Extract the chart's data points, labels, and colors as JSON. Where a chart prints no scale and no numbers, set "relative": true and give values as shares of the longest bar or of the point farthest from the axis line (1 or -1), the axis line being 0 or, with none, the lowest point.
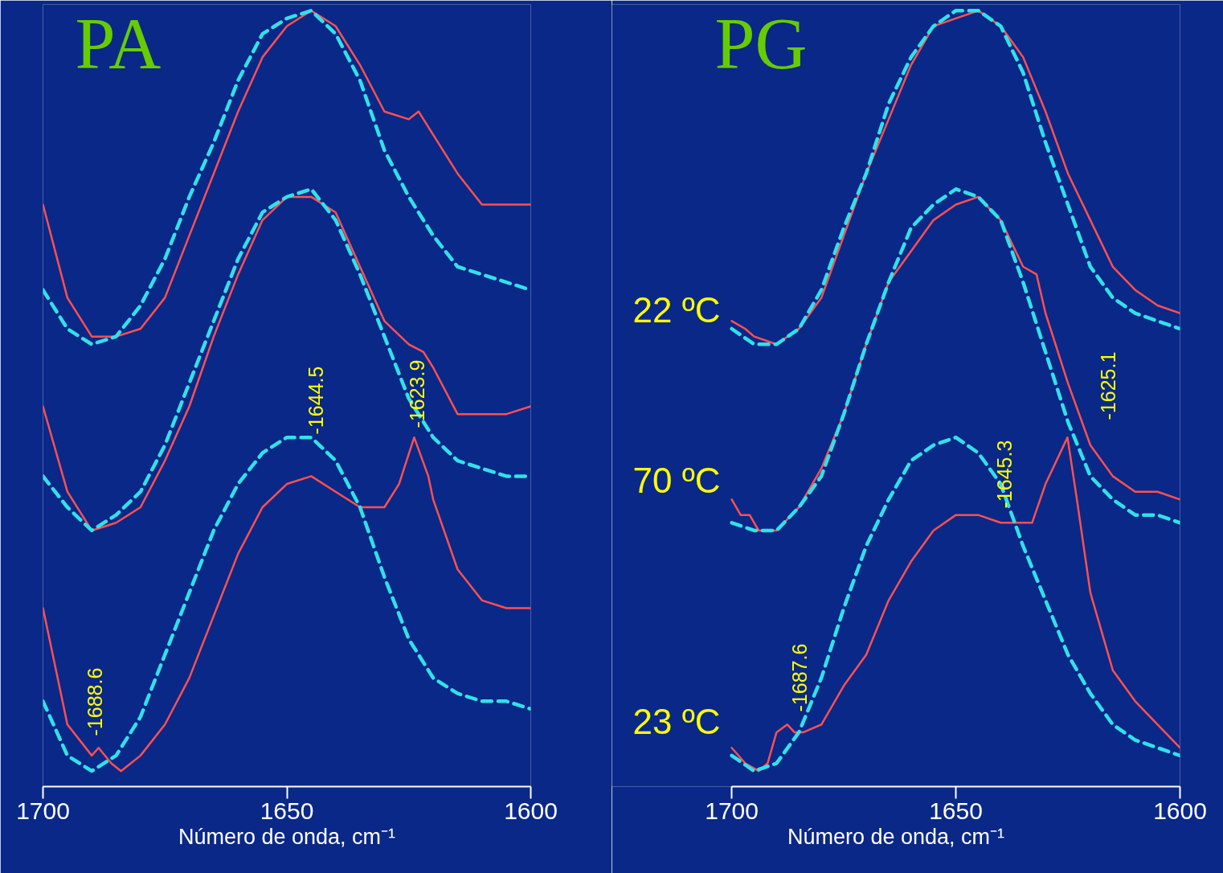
{
  "chart_data": [
    {
      "type": "line",
      "title": "PA",
      "xlabel": "Número de onda, cm⁻¹",
      "relative": true,
      "xlim": [
        1700,
        1600
      ],
      "xticks": [
        1700,
        1650,
        1600
      ],
      "grid": false,
      "series": [
        {
          "color": "#ff5050",
          "line_style": "solid",
          "x": [
            1700,
            1695,
            1690,
            1685,
            1680,
            1675,
            1670,
            1665,
            1660,
            1655,
            1650,
            1645,
            1640,
            1635,
            1630,
            1625,
            1623,
            1620,
            1615,
            1610,
            1605,
            1600
          ],
          "values": [
            0.75,
            0.63,
            0.58,
            0.58,
            0.59,
            0.63,
            0.71,
            0.79,
            0.87,
            0.94,
            0.98,
            1.0,
            0.98,
            0.93,
            0.87,
            0.86,
            0.87,
            0.84,
            0.79,
            0.75,
            0.75,
            0.75
          ]
        },
        {
          "color": "#33e0e8",
          "line_style": "dashed",
          "x": [
            1700,
            1695,
            1690,
            1685,
            1680,
            1675,
            1670,
            1665,
            1660,
            1655,
            1650,
            1645,
            1640,
            1635,
            1630,
            1625,
            1620,
            1615,
            1610,
            1605,
            1600
          ],
          "values": [
            0.64,
            0.59,
            0.57,
            0.58,
            0.62,
            0.68,
            0.76,
            0.83,
            0.91,
            0.97,
            0.99,
            1.0,
            0.97,
            0.91,
            0.82,
            0.76,
            0.71,
            0.67,
            0.66,
            0.65,
            0.64
          ]
        },
        {
          "color": "#ff5050",
          "line_style": "solid",
          "x": [
            1700,
            1695,
            1690,
            1685,
            1680,
            1675,
            1670,
            1665,
            1660,
            1655,
            1650,
            1645,
            1640,
            1635,
            1630,
            1625,
            1622,
            1620,
            1615,
            1610,
            1605,
            1600
          ],
          "values": [
            0.49,
            0.38,
            0.33,
            0.34,
            0.36,
            0.42,
            0.49,
            0.58,
            0.66,
            0.73,
            0.76,
            0.76,
            0.74,
            0.67,
            0.6,
            0.57,
            0.56,
            0.54,
            0.48,
            0.48,
            0.48,
            0.49
          ]
        },
        {
          "color": "#33e0e8",
          "line_style": "dashed",
          "x": [
            1700,
            1695,
            1690,
            1685,
            1680,
            1675,
            1670,
            1665,
            1660,
            1655,
            1650,
            1645,
            1640,
            1635,
            1630,
            1625,
            1620,
            1615,
            1610,
            1605,
            1600
          ],
          "values": [
            0.4,
            0.36,
            0.33,
            0.35,
            0.38,
            0.44,
            0.52,
            0.6,
            0.68,
            0.74,
            0.76,
            0.77,
            0.73,
            0.66,
            0.58,
            0.5,
            0.45,
            0.42,
            0.41,
            0.4,
            0.4
          ]
        },
        {
          "color": "#ff5050",
          "line_style": "solid",
          "x": [
            1700,
            1695,
            1690,
            1688.6,
            1686,
            1684,
            1680,
            1675,
            1670,
            1665,
            1660,
            1655,
            1650,
            1645,
            1640,
            1635,
            1630,
            1627,
            1623.9,
            1621,
            1620,
            1615,
            1610,
            1605,
            1600
          ],
          "values": [
            0.23,
            0.08,
            0.04,
            0.05,
            0.03,
            0.02,
            0.04,
            0.08,
            0.14,
            0.22,
            0.3,
            0.36,
            0.39,
            0.4,
            0.38,
            0.36,
            0.36,
            0.39,
            0.45,
            0.4,
            0.37,
            0.28,
            0.24,
            0.23,
            0.23
          ]
        },
        {
          "color": "#33e0e8",
          "line_style": "dashed",
          "x": [
            1700,
            1695,
            1690,
            1685,
            1680,
            1675,
            1670,
            1665,
            1660,
            1655,
            1650,
            1645,
            1640,
            1635,
            1630,
            1625,
            1620,
            1615,
            1610,
            1605,
            1600
          ],
          "values": [
            0.11,
            0.04,
            0.02,
            0.04,
            0.09,
            0.17,
            0.25,
            0.33,
            0.39,
            0.43,
            0.45,
            0.45,
            0.42,
            0.36,
            0.27,
            0.19,
            0.14,
            0.12,
            0.11,
            0.11,
            0.1
          ]
        }
      ],
      "annotations": [
        "-1688.6",
        "-1644.5",
        "-1623.9"
      ]
    },
    {
      "type": "line",
      "title": "PG",
      "xlabel": "Número de onda, cm⁻¹",
      "relative": true,
      "xlim": [
        1700,
        1600
      ],
      "xticks": [
        1700,
        1650,
        1600
      ],
      "grid": false,
      "series": [
        {
          "color": "#ff5050",
          "line_style": "solid",
          "x": [
            1700,
            1697,
            1695,
            1690,
            1685,
            1680,
            1675,
            1670,
            1665,
            1660,
            1655,
            1650,
            1645,
            1640,
            1635,
            1630,
            1625,
            1620,
            1615,
            1610,
            1605,
            1600
          ],
          "values": [
            0.6,
            0.59,
            0.58,
            0.57,
            0.59,
            0.63,
            0.71,
            0.79,
            0.86,
            0.93,
            0.98,
            0.99,
            1.0,
            0.98,
            0.94,
            0.87,
            0.79,
            0.73,
            0.67,
            0.64,
            0.62,
            0.61
          ]
        },
        {
          "color": "#33e0e8",
          "line_style": "dashed",
          "x": [
            1700,
            1695,
            1690,
            1685,
            1680,
            1675,
            1670,
            1665,
            1660,
            1655,
            1650,
            1645,
            1640,
            1635,
            1630,
            1625,
            1620,
            1615,
            1610,
            1605,
            1600
          ],
          "values": [
            0.59,
            0.57,
            0.57,
            0.59,
            0.64,
            0.72,
            0.79,
            0.88,
            0.94,
            0.98,
            1.0,
            1.0,
            0.98,
            0.92,
            0.83,
            0.75,
            0.67,
            0.63,
            0.61,
            0.6,
            0.59
          ]
        },
        {
          "color": "#ff5050",
          "line_style": "solid",
          "x": [
            1700,
            1698,
            1696,
            1694,
            1690,
            1685,
            1680,
            1675,
            1670,
            1665,
            1660,
            1655,
            1650,
            1645,
            1640,
            1635,
            1632,
            1630,
            1625,
            1620,
            1615,
            1610,
            1605,
            1600
          ],
          "values": [
            0.37,
            0.35,
            0.35,
            0.33,
            0.33,
            0.36,
            0.41,
            0.48,
            0.57,
            0.65,
            0.69,
            0.73,
            0.75,
            0.76,
            0.73,
            0.67,
            0.66,
            0.61,
            0.52,
            0.44,
            0.4,
            0.38,
            0.38,
            0.37
          ]
        },
        {
          "color": "#33e0e8",
          "line_style": "dashed",
          "x": [
            1700,
            1695,
            1690,
            1685,
            1680,
            1675,
            1670,
            1665,
            1660,
            1655,
            1650,
            1645,
            1640,
            1635,
            1630,
            1625,
            1620,
            1615,
            1610,
            1605,
            1600
          ],
          "values": [
            0.34,
            0.33,
            0.33,
            0.36,
            0.4,
            0.48,
            0.57,
            0.65,
            0.72,
            0.75,
            0.77,
            0.76,
            0.73,
            0.65,
            0.56,
            0.47,
            0.4,
            0.37,
            0.35,
            0.35,
            0.34
          ]
        },
        {
          "color": "#ff5050",
          "line_style": "solid",
          "x": [
            1700,
            1697,
            1694,
            1692,
            1690,
            1687.6,
            1686,
            1684,
            1680,
            1675,
            1670,
            1665,
            1660,
            1655,
            1650,
            1645,
            1640,
            1635,
            1633,
            1630,
            1625.1,
            1623,
            1620,
            1615,
            1610,
            1605,
            1600
          ],
          "values": [
            0.05,
            0.03,
            0.02,
            0.03,
            0.07,
            0.08,
            0.07,
            0.07,
            0.08,
            0.13,
            0.17,
            0.24,
            0.29,
            0.33,
            0.35,
            0.35,
            0.34,
            0.34,
            0.34,
            0.39,
            0.45,
            0.37,
            0.25,
            0.15,
            0.11,
            0.08,
            0.05
          ]
        },
        {
          "color": "#33e0e8",
          "line_style": "dashed",
          "x": [
            1700,
            1695,
            1690,
            1685,
            1680,
            1675,
            1670,
            1665,
            1660,
            1655,
            1650,
            1645,
            1640,
            1635,
            1630,
            1625,
            1620,
            1615,
            1610,
            1605,
            1600
          ],
          "values": [
            0.04,
            0.02,
            0.03,
            0.07,
            0.14,
            0.23,
            0.31,
            0.37,
            0.42,
            0.44,
            0.45,
            0.43,
            0.39,
            0.31,
            0.24,
            0.17,
            0.12,
            0.08,
            0.06,
            0.05,
            0.04
          ]
        }
      ],
      "annotations": [
        "22 ºC",
        "70 ºC",
        "23 ºC",
        "-1687.6",
        "-1645.3",
        "-1625.1"
      ]
    }
  ]
}
